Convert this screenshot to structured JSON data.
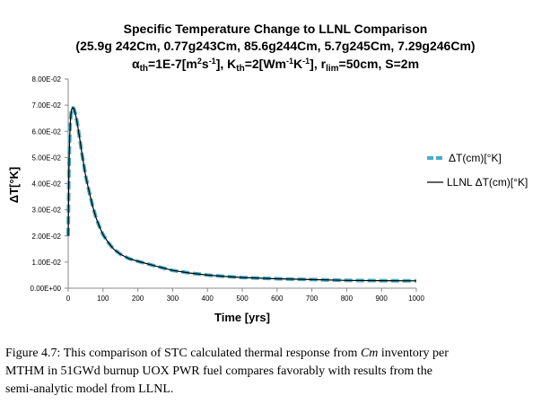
{
  "chart_data": {
    "type": "line",
    "title": "Specific Temperature Change to LLNL Comparison",
    "subtitle": "(25.9g 242Cm, 0.77g243Cm, 85.6g244Cm, 5.7g245Cm, 7.29g246Cm)",
    "params_line": {
      "alpha": "α",
      "alpha_sub": "th",
      "alpha_val": "=1E-7[m",
      "alpha_sup": "2",
      "alpha_end": "s",
      "alpha_sup2": "-1",
      "alpha_close": "], K",
      "k_sub": "th",
      "k_val": "=2[Wm",
      "k_sup": "-1",
      "k_mid": "K",
      "k_sup2": "-1",
      "k_close": "], r",
      "r_sub": "lim",
      "r_rest": "=50cm, S=2m"
    },
    "xlabel": "Time [yrs]",
    "ylabel": "ΔT[°K]",
    "xlim": [
      0,
      1000
    ],
    "ylim": [
      0,
      0.08
    ],
    "x_ticks": [
      0,
      100,
      200,
      300,
      400,
      500,
      600,
      700,
      800,
      900,
      1000
    ],
    "x_tick_labels": [
      "0",
      "100",
      "200",
      "300",
      "400",
      "500",
      "600",
      "700",
      "800",
      "900",
      "1000"
    ],
    "y_ticks": [
      0,
      0.01,
      0.02,
      0.03,
      0.04,
      0.05,
      0.06,
      0.07,
      0.08
    ],
    "y_tick_labels": [
      "0.00E+00",
      "1.00E-02",
      "2.00E-02",
      "3.00E-02",
      "4.00E-02",
      "5.00E-02",
      "6.00E-02",
      "7.00E-02",
      "8.00E-02"
    ],
    "grid": false,
    "legend_position": "right",
    "series": [
      {
        "name": "ΔT(cm)[°K]",
        "color": "#4bacc6",
        "style": "dashed",
        "x": [
          0,
          2,
          4,
          6,
          8,
          10,
          13,
          16,
          20,
          25,
          30,
          35,
          40,
          45,
          50,
          60,
          70,
          80,
          90,
          100,
          115,
          130,
          150,
          175,
          200,
          250,
          300,
          350,
          400,
          450,
          500,
          600,
          700,
          800,
          900,
          1000
        ],
        "y": [
          0.02,
          0.045,
          0.057,
          0.063,
          0.0665,
          0.0685,
          0.069,
          0.0688,
          0.067,
          0.064,
          0.06,
          0.0555,
          0.051,
          0.047,
          0.043,
          0.037,
          0.0315,
          0.027,
          0.0235,
          0.0205,
          0.0175,
          0.015,
          0.013,
          0.0113,
          0.0103,
          0.0085,
          0.0068,
          0.0058,
          0.005,
          0.0045,
          0.0041,
          0.0036,
          0.0033,
          0.003,
          0.0029,
          0.0028
        ]
      },
      {
        "name": "LLNL ΔT(cm)[°K]",
        "color": "#000000",
        "style": "solid",
        "x": [
          0,
          2,
          4,
          6,
          8,
          10,
          13,
          16,
          20,
          25,
          30,
          35,
          40,
          45,
          50,
          60,
          70,
          80,
          90,
          100,
          115,
          130,
          150,
          175,
          200,
          250,
          300,
          350,
          400,
          450,
          500,
          600,
          700,
          800,
          900,
          1000
        ],
        "y": [
          0.02,
          0.045,
          0.057,
          0.063,
          0.0665,
          0.0685,
          0.069,
          0.0688,
          0.067,
          0.064,
          0.06,
          0.0555,
          0.051,
          0.047,
          0.043,
          0.037,
          0.0315,
          0.027,
          0.0235,
          0.0205,
          0.0175,
          0.015,
          0.013,
          0.0113,
          0.0103,
          0.0085,
          0.0068,
          0.0058,
          0.005,
          0.0045,
          0.0041,
          0.0036,
          0.0033,
          0.003,
          0.0029,
          0.0028
        ]
      }
    ]
  },
  "caption": {
    "line1": "Figure 4.7: This comparison of STC calculated thermal response from ",
    "line1_italic": "Cm",
    "line1_end": " inventory per",
    "line2": "MTHM in 51GWd burnup UOX PWR fuel compares favorably with results from the",
    "line3": "semi-analytic model from LLNL."
  }
}
